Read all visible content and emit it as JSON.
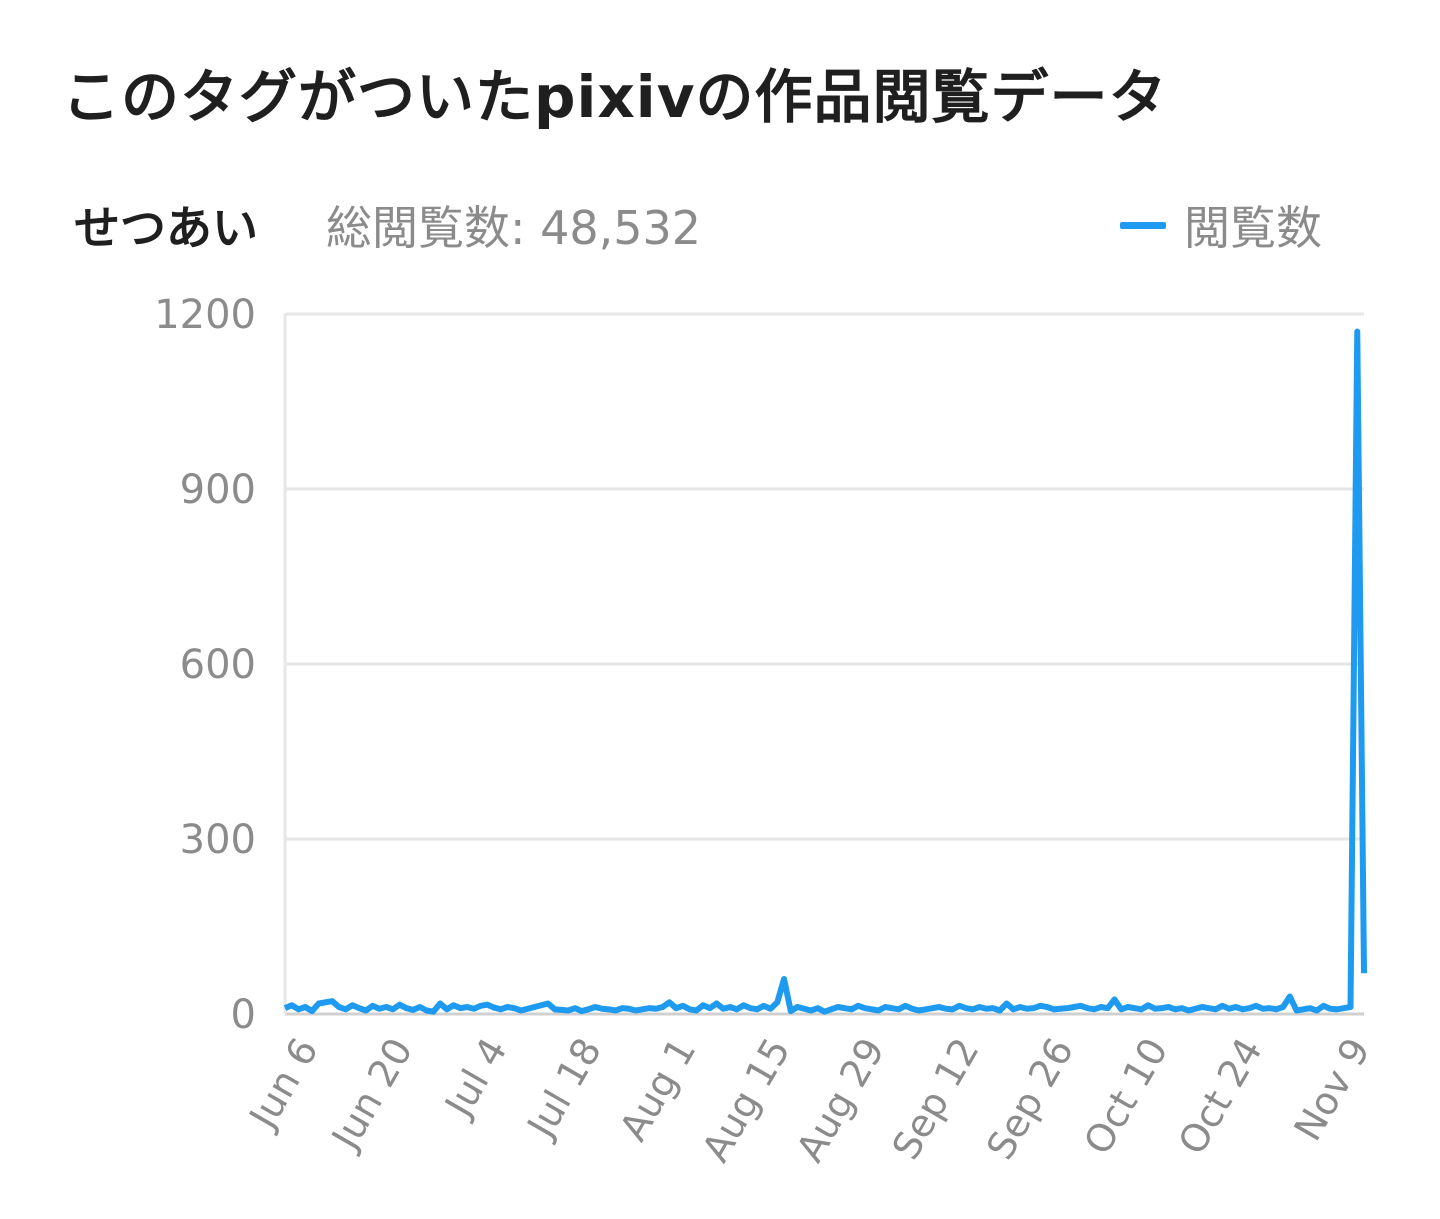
{
  "title": "このタグがついたpixivの作品閲覧データ",
  "tag": "せつあい",
  "total_label": "総閲覧数: 48,532",
  "colors": {
    "accent": "#1e9bf0",
    "grid": "#e6e6e6",
    "tick_text": "#8b8b8b"
  },
  "chart_data": {
    "type": "line",
    "title": "",
    "xlabel": "",
    "ylabel": "",
    "ylim": [
      0,
      1200
    ],
    "yticks": [
      0,
      300,
      600,
      900,
      1200
    ],
    "x_tick_labels": [
      "Jun 6",
      "Jun 20",
      "Jul 4",
      "Jul 18",
      "Aug 1",
      "Aug 15",
      "Aug 29",
      "Sep 12",
      "Sep 26",
      "Oct 10",
      "Oct 24",
      "Nov 9"
    ],
    "x_tick_index": [
      0,
      14,
      28,
      42,
      56,
      70,
      84,
      98,
      112,
      126,
      140,
      156
    ],
    "legend_position": "top-right",
    "grid": true,
    "series": [
      {
        "name": "閲覧数",
        "values": [
          10,
          15,
          8,
          12,
          5,
          18,
          20,
          22,
          12,
          8,
          15,
          10,
          6,
          14,
          9,
          12,
          8,
          16,
          10,
          7,
          12,
          6,
          4,
          18,
          8,
          15,
          10,
          12,
          9,
          14,
          16,
          11,
          8,
          12,
          10,
          6,
          9,
          12,
          15,
          18,
          8,
          7,
          6,
          10,
          5,
          8,
          12,
          9,
          8,
          6,
          10,
          9,
          6,
          8,
          10,
          9,
          12,
          20,
          10,
          14,
          8,
          6,
          15,
          10,
          18,
          9,
          12,
          8,
          15,
          10,
          8,
          14,
          9,
          20,
          60,
          5,
          12,
          9,
          6,
          10,
          4,
          8,
          12,
          10,
          8,
          14,
          10,
          8,
          6,
          12,
          10,
          8,
          14,
          9,
          6,
          8,
          10,
          12,
          9,
          8,
          14,
          10,
          8,
          12,
          9,
          10,
          6,
          18,
          8,
          12,
          9,
          10,
          14,
          12,
          8,
          9,
          10,
          12,
          14,
          10,
          8,
          12,
          10,
          25,
          8,
          12,
          10,
          8,
          15,
          9,
          10,
          12,
          8,
          10,
          6,
          9,
          12,
          10,
          8,
          14,
          9,
          12,
          8,
          10,
          14,
          9,
          10,
          8,
          12,
          30,
          6,
          8,
          10,
          6,
          14,
          9,
          8,
          10,
          12,
          1170,
          70
        ]
      }
    ]
  }
}
